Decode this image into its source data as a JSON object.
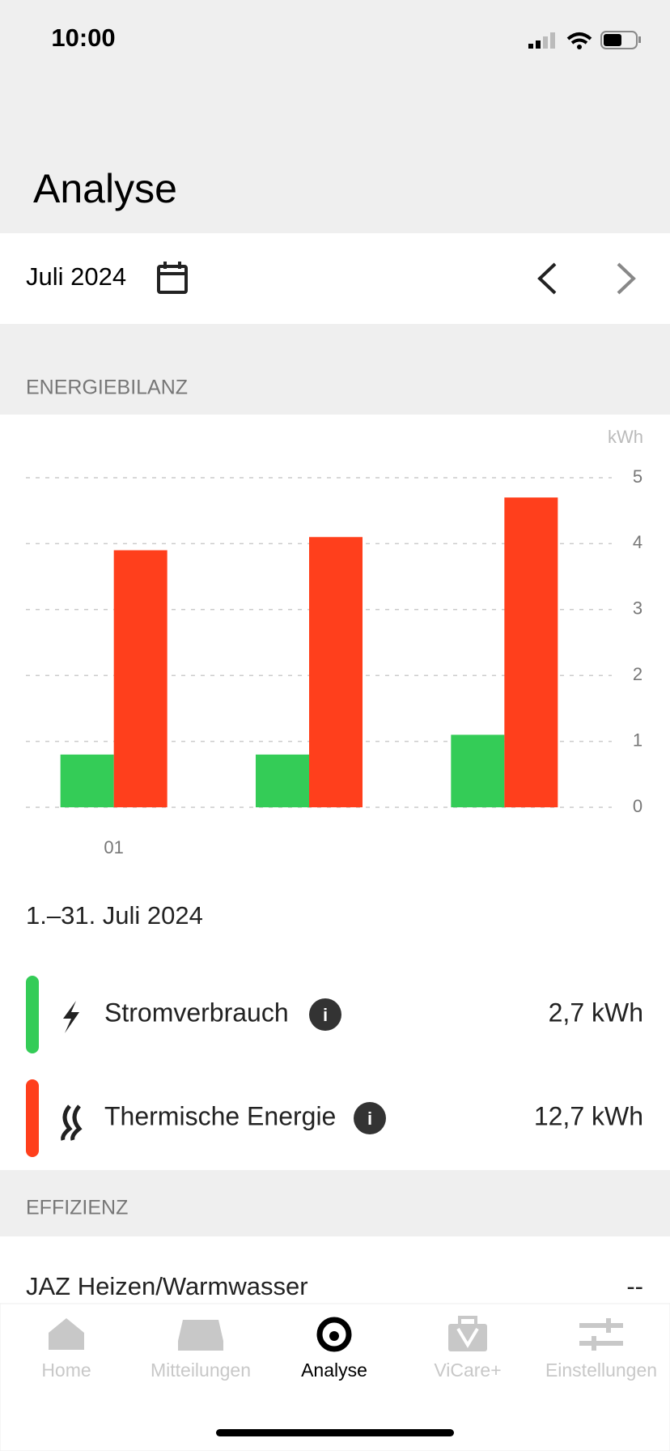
{
  "status": {
    "time": "10:00"
  },
  "header": {
    "title": "Analyse"
  },
  "date": {
    "label": "Juli 2024"
  },
  "sections": {
    "energy": "ENERGIEBILANZ",
    "efficiency": "EFFIZIENZ"
  },
  "chart_data": {
    "type": "bar",
    "y_unit": "kWh",
    "categories": [
      "01",
      null,
      null
    ],
    "series": [
      {
        "name": "Stromverbrauch",
        "color": "#34cc57",
        "values": [
          0.8,
          0.8,
          1.1
        ]
      },
      {
        "name": "Thermische Energie",
        "color": "#ff3f1c",
        "values": [
          3.9,
          4.1,
          4.7
        ]
      }
    ],
    "ylim": [
      0,
      5
    ],
    "yticks": [
      0,
      1,
      2,
      3,
      4,
      5
    ],
    "grid": true,
    "y_axis_side": "right"
  },
  "summary": {
    "period": "1.–31. Juli 2024",
    "totals": [
      "2,7 kWh",
      "12,7 kWh"
    ]
  },
  "efficiency": {
    "label": "JAZ Heizen/Warmwasser",
    "value": "--"
  },
  "tabs": [
    "Home",
    "Mitteilungen",
    "Analyse",
    "ViCare+",
    "Einstellungen"
  ]
}
